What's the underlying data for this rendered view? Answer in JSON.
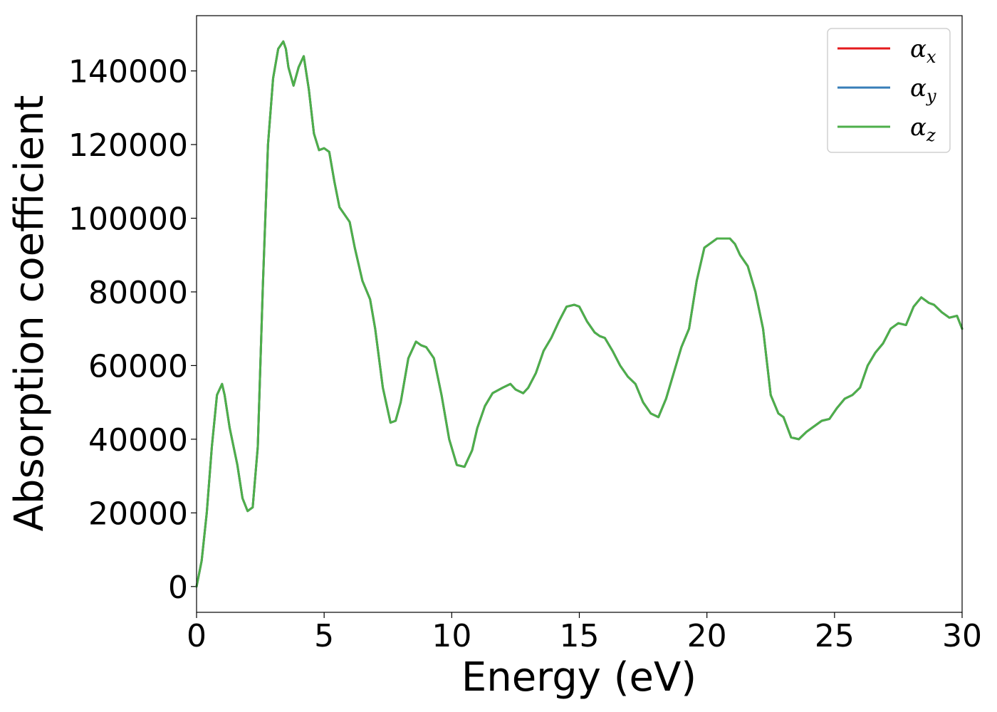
{
  "chart_data": {
    "type": "line",
    "title": "",
    "xlabel": "Energy (eV)",
    "ylabel": "Absorption coefficient",
    "xlim": [
      0,
      30
    ],
    "ylim": [
      -7000,
      155000
    ],
    "xticks": [
      0,
      5,
      10,
      15,
      20,
      25,
      30
    ],
    "yticks": [
      0,
      20000,
      40000,
      60000,
      80000,
      100000,
      120000,
      140000
    ],
    "xtick_labels": [
      "0",
      "5",
      "10",
      "15",
      "20",
      "25",
      "30"
    ],
    "ytick_labels": [
      "0",
      "20000",
      "40000",
      "60000",
      "80000",
      "100000",
      "120000",
      "140000"
    ],
    "grid": false,
    "legend_position": "top-right",
    "series": [
      {
        "name": "α",
        "subscript": "x",
        "color": "#e41a1c"
      },
      {
        "name": "α",
        "subscript": "y",
        "color": "#377eb8"
      },
      {
        "name": "α",
        "subscript": "z",
        "color": "#4daf4a"
      }
    ],
    "x": [
      0,
      0.2,
      0.4,
      0.6,
      0.8,
      1.0,
      1.1,
      1.3,
      1.6,
      1.8,
      2.0,
      2.2,
      2.4,
      2.6,
      2.8,
      3.0,
      3.2,
      3.4,
      3.5,
      3.6,
      3.8,
      4.0,
      4.2,
      4.4,
      4.6,
      4.8,
      5.0,
      5.2,
      5.4,
      5.6,
      5.8,
      6.0,
      6.2,
      6.5,
      6.8,
      7.0,
      7.3,
      7.6,
      7.8,
      8.0,
      8.3,
      8.6,
      8.8,
      9.0,
      9.3,
      9.6,
      9.9,
      10.2,
      10.5,
      10.8,
      11.0,
      11.3,
      11.6,
      12.0,
      12.3,
      12.5,
      12.8,
      13.0,
      13.3,
      13.6,
      13.9,
      14.2,
      14.5,
      14.8,
      15.0,
      15.3,
      15.6,
      15.8,
      16.0,
      16.3,
      16.6,
      16.9,
      17.2,
      17.5,
      17.8,
      18.1,
      18.4,
      18.7,
      19.0,
      19.3,
      19.6,
      19.9,
      20.1,
      20.4,
      20.7,
      20.9,
      21.1,
      21.3,
      21.6,
      21.9,
      22.2,
      22.5,
      22.8,
      23.0,
      23.3,
      23.6,
      23.9,
      24.2,
      24.5,
      24.8,
      25.1,
      25.4,
      25.7,
      26.0,
      26.3,
      26.6,
      26.9,
      27.2,
      27.5,
      27.8,
      28.1,
      28.4,
      28.7,
      28.9,
      29.2,
      29.5,
      29.8,
      30.0
    ],
    "y": [
      0,
      7000,
      20000,
      38000,
      52000,
      55000,
      52000,
      43000,
      33000,
      24000,
      20500,
      21500,
      38000,
      82000,
      120000,
      138000,
      146000,
      148000,
      146000,
      141000,
      136000,
      141000,
      144000,
      135000,
      123000,
      118500,
      119000,
      118000,
      110000,
      103000,
      101000,
      99000,
      92000,
      83000,
      78000,
      70000,
      54000,
      44500,
      45000,
      50000,
      62000,
      66500,
      65500,
      65000,
      62000,
      52000,
      40000,
      33000,
      32500,
      37000,
      43000,
      49000,
      52500,
      54000,
      55000,
      53500,
      52500,
      54000,
      58000,
      64000,
      67500,
      72000,
      76000,
      76500,
      76000,
      72000,
      69000,
      68000,
      67500,
      64000,
      60000,
      57000,
      55000,
      50000,
      47000,
      46000,
      51000,
      58000,
      65000,
      70000,
      83000,
      92000,
      93000,
      94500,
      94500,
      94500,
      93000,
      90000,
      87000,
      80000,
      70000,
      52000,
      47000,
      46000,
      40500,
      40000,
      42000,
      43500,
      45000,
      45500,
      48500,
      51000,
      52000,
      54000,
      60000,
      63500,
      66000,
      70000,
      71500,
      71000,
      76000,
      78500,
      77000,
      76500,
      74500,
      73000,
      73500,
      70000
    ]
  }
}
